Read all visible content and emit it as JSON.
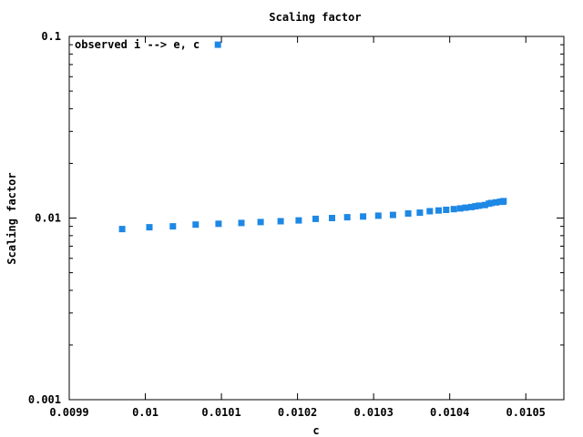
{
  "chart_data": {
    "type": "scatter",
    "title": "Scaling factor",
    "xlabel": "c",
    "ylabel": "Scaling factor",
    "xlim": [
      0.0099,
      0.01055
    ],
    "ylim": [
      0.001,
      0.1
    ],
    "y_scale": "log",
    "grid": false,
    "legend_position": "top-left",
    "x_ticks": [
      "0.0099",
      "0.01",
      "0.0101",
      "0.0102",
      "0.0103",
      "0.0104",
      "0.0105"
    ],
    "y_ticks": [
      "0.001",
      "0.01",
      "0.1"
    ],
    "annotation": "observed i --> e, c",
    "color": "#1e88e5",
    "series": [
      {
        "x": [
          0.0099695,
          0.0100054,
          0.0100362,
          0.0100662,
          0.0100962,
          0.0101262,
          0.0101515,
          0.0101778,
          0.0102015,
          0.0102238,
          0.0102454,
          0.0102654,
          0.0102862,
          0.0103062,
          0.0103254,
          0.0103454,
          0.0103608,
          0.0103738,
          0.0103854,
          0.0103954,
          0.0104054,
          0.0104138,
          0.0104208,
          0.0104285,
          0.0104338,
          0.0104385,
          0.0104462,
          0.0104515,
          0.0104546,
          0.0104608,
          0.0104662,
          0.01047,
          0.0104708
        ],
        "y": [
          0.0087,
          0.0089,
          0.009,
          0.0092,
          0.0093,
          0.0094,
          0.0095,
          0.0096,
          0.0097,
          0.0099,
          0.01,
          0.0101,
          0.0102,
          0.0103,
          0.0104,
          0.0106,
          0.0107,
          0.0109,
          0.011,
          0.0111,
          0.0112,
          0.0113,
          0.0114,
          0.0115,
          0.0116,
          0.0117,
          0.0118,
          0.012,
          0.0121,
          0.0122,
          0.0123,
          0.0123,
          0.0124
        ]
      },
      {
        "x": [
          0.0100954
        ],
        "y": [
          0.09
        ]
      }
    ]
  }
}
